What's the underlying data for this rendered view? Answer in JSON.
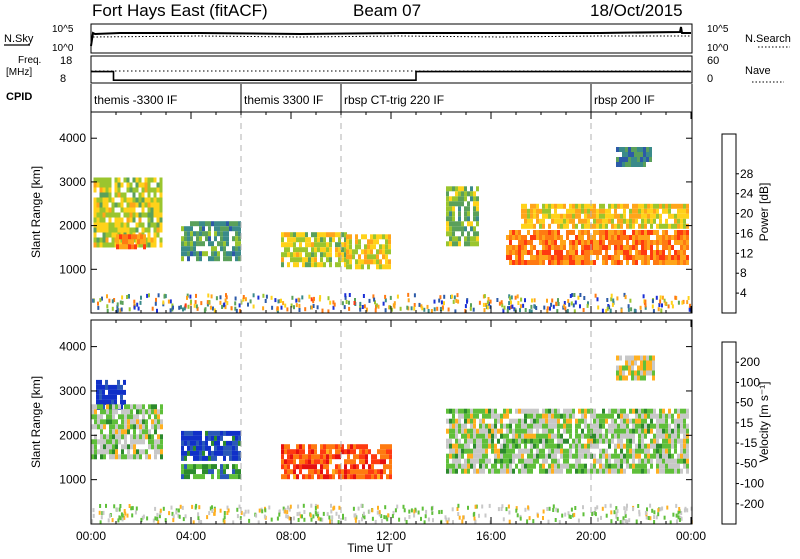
{
  "header": {
    "station": "Fort Hays East (fitACF)",
    "beam": "Beam 07",
    "date": "18/Oct/2015"
  },
  "top_panels": {
    "nsky_label": "N.Sky",
    "nsearch_label": "N.Search",
    "nsky_ticks": [
      "10^5",
      "10^0"
    ],
    "nsearch_ticks": [
      "10^5",
      "10^0"
    ],
    "freq_label": "Freq.",
    "freq_unit": "[MHz]",
    "freq_ticks": [
      "18",
      "8"
    ],
    "nave_label": "Nave",
    "nave_ticks": [
      "60",
      "0"
    ],
    "cpid_label": "CPID",
    "cpid_segments": [
      {
        "start": 0,
        "label": "themis -3300 IF"
      },
      {
        "start": 6,
        "label": "themis 3300 IF"
      },
      {
        "start": 10,
        "label": "rbsp CT-trig 220 IF"
      },
      {
        "start": 20,
        "label": "rbsp 200 IF"
      }
    ],
    "freq_series": {
      "x": [
        0,
        0.9,
        0.9,
        13,
        13,
        24
      ],
      "y": [
        12,
        12,
        8.7,
        8.7,
        12,
        12
      ]
    }
  },
  "chart_data": [
    {
      "type": "heatmap",
      "name": "power",
      "ylabel": "Slant Range [km]",
      "yticks": [
        "1000",
        "2000",
        "3000",
        "4000"
      ],
      "ylim": [
        0,
        4600
      ],
      "xlim": [
        0,
        24
      ],
      "colorbar_label": "Power [dB]",
      "colorbar_ticks": [
        "4",
        "8",
        "12",
        "16",
        "20",
        "24",
        "28"
      ],
      "colorbar_range": [
        0,
        32
      ],
      "colors": [
        "#1a2fd6",
        "#2c5aa8",
        "#3a8a8a",
        "#5aa05a",
        "#9ac52e",
        "#ffd21a",
        "#ffa51a",
        "#ff7a12",
        "#ff3a10"
      ],
      "patches": [
        {
          "t0": 0.1,
          "t1": 2.8,
          "r0": 1550,
          "r1": 3100,
          "level": 0.55
        },
        {
          "t0": 1.0,
          "t1": 2.2,
          "r0": 1500,
          "r1": 1800,
          "level": 0.78
        },
        {
          "t0": 3.6,
          "t1": 5.9,
          "r0": 1200,
          "r1": 2100,
          "level": 0.35
        },
        {
          "t0": 7.6,
          "t1": 10.2,
          "r0": 1100,
          "r1": 1850,
          "level": 0.55
        },
        {
          "t0": 10.2,
          "t1": 12.0,
          "r0": 1000,
          "r1": 1800,
          "level": 0.6
        },
        {
          "t0": 14.2,
          "t1": 15.5,
          "r0": 1600,
          "r1": 2900,
          "level": 0.45
        },
        {
          "t0": 16.6,
          "t1": 23.9,
          "r0": 1200,
          "r1": 1900,
          "level": 0.82
        },
        {
          "t0": 17.2,
          "t1": 23.9,
          "r0": 2000,
          "r1": 2500,
          "level": 0.62
        },
        {
          "t0": 21.0,
          "t1": 22.4,
          "r0": 3400,
          "r1": 3800,
          "level": 0.3
        }
      ]
    },
    {
      "type": "heatmap",
      "name": "velocity",
      "ylabel": "Slant Range [km]",
      "yticks": [
        "1000",
        "2000",
        "3000",
        "4000"
      ],
      "ylim": [
        0,
        4600
      ],
      "xlim": [
        0,
        24
      ],
      "xlabel": "Time UT",
      "xticks": [
        "00:00",
        "04:00",
        "08:00",
        "12:00",
        "16:00",
        "20:00",
        "00:00"
      ],
      "colorbar_label": "Velocity [m s⁻¹]",
      "colorbar_ticks": [
        "200",
        "100",
        "50",
        "15",
        "-15",
        "-50",
        "-100",
        "-200"
      ],
      "colors": [
        "#1030c8",
        "#2a58b8",
        "#2c8a2c",
        "#5fbf3a",
        "#c8c8c8",
        "#ffb020",
        "#ff7a10",
        "#ff3a10",
        "#e61010"
      ],
      "patches": [
        {
          "t0": 0.2,
          "t1": 1.3,
          "r0": 2650,
          "r1": 3250,
          "level": 0.05
        },
        {
          "t0": 0.0,
          "t1": 2.8,
          "r0": 1550,
          "r1": 2700,
          "level": 0.45
        },
        {
          "t0": 3.6,
          "t1": 5.9,
          "r0": 1500,
          "r1": 2100,
          "level": 0.1
        },
        {
          "t0": 3.6,
          "t1": 5.9,
          "r0": 1100,
          "r1": 1350,
          "level": 0.3
        },
        {
          "t0": 7.6,
          "t1": 12.0,
          "r0": 1050,
          "r1": 1800,
          "level": 0.8
        },
        {
          "t0": 14.2,
          "t1": 23.9,
          "r0": 1200,
          "r1": 2600,
          "level": 0.45
        },
        {
          "t0": 21.0,
          "t1": 22.5,
          "r0": 3300,
          "r1": 3800,
          "level": 0.52
        }
      ]
    }
  ]
}
